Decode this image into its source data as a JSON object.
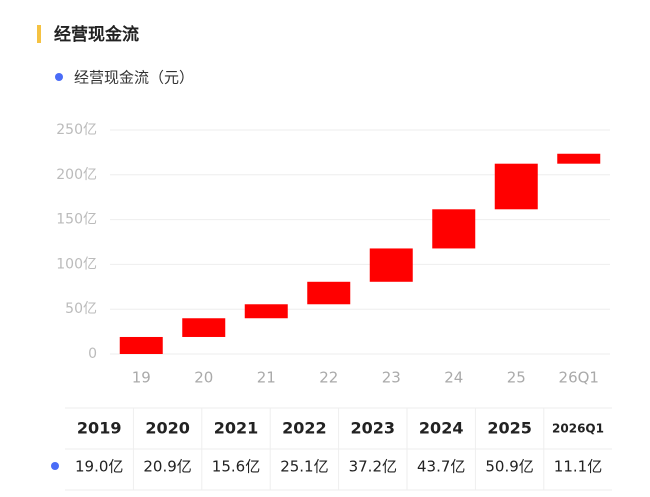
{
  "chart_data": {
    "type": "waterfall",
    "title": "经营现金流",
    "legend": "经营现金流（元）",
    "categories": [
      "19",
      "20",
      "21",
      "22",
      "23",
      "24",
      "25",
      "26Q1"
    ],
    "values": [
      19.0,
      20.9,
      15.6,
      25.1,
      37.2,
      43.7,
      50.9,
      11.1
    ],
    "value_labels": [
      "19.0亿",
      "20.9亿",
      "15.6亿",
      "25.1亿",
      "37.2亿",
      "43.7亿",
      "50.9亿",
      "11.1亿"
    ],
    "color": "#ff0000",
    "legend_color": "#4a6cf7",
    "ylim": [
      0,
      250
    ],
    "yticks": [
      0,
      {
        "value": 50,
        "label": "50亿"
      },
      {
        "value": 100,
        "label": "100亿"
      },
      {
        "value": 150,
        "label": "150亿"
      },
      {
        "value": 200,
        "label": "200亿"
      },
      {
        "value": 250,
        "label": "250亿"
      }
    ],
    "grid": true
  },
  "table": {
    "columns": [
      "2019",
      "2020",
      "2021",
      "2022",
      "2023",
      "2024",
      "2025",
      "2026Q1"
    ]
  }
}
